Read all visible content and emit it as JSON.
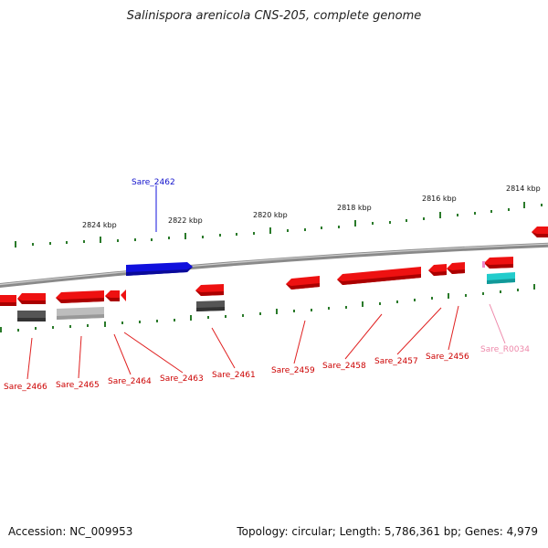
{
  "title": "Salinispora arenicola CNS-205, complete genome",
  "footer": {
    "accession": "Accession: NC_009953",
    "summary": "Topology: circular; Length: 5,786,361 bp; Genes: 4,979"
  },
  "scale_labels": [
    "2824 kbp",
    "2822 kbp",
    "2820 kbp",
    "2818 kbp",
    "2816 kbp",
    "2814 kbp"
  ],
  "gene_labels": {
    "top": [
      "Sare_2462"
    ],
    "bottom": [
      "Sare_2466",
      "Sare_2465",
      "Sare_2464",
      "Sare_2463",
      "Sare_2461",
      "Sare_2459",
      "Sare_2458",
      "Sare_2457",
      "Sare_2456",
      "Sare_R0034"
    ]
  },
  "colors": {
    "forward_cds": "#1010dd",
    "reverse_cds": "#ee1111",
    "pseudo_dark": "#555555",
    "pseudo_light": "#b8b8b8",
    "rna": "#22cccc",
    "rna_label": "#ee88aa",
    "ticks": "#2a7a2a",
    "backbone": "#888888"
  }
}
